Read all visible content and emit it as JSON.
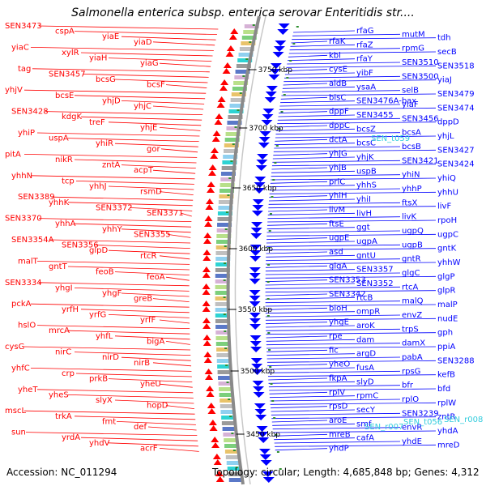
{
  "title": "Salmonella enterica subsp. enterica serovar Enteritidis str....",
  "accession": "Accession: NC_011294",
  "topology": "Topology: circular; Length: 4,685,848 bp; Genes: 4,312",
  "colors": {
    "left_genes": "#ff0000",
    "right_genes": "#0000ff",
    "rna_genes": "#33ccdd",
    "backbone": "#888888"
  },
  "kbp_markers": [
    "3750 kbp",
    "3700 kbp",
    "3650 kbp",
    "3600 kbp",
    "3550 kbp",
    "3500 kbp",
    "3450 kbp"
  ],
  "left_genes": [
    "SEN3473",
    "cspA",
    "yiaE",
    "yiaD",
    "yiaC",
    "xylR",
    "yiaH",
    "yiaG",
    "tag",
    "SEN3457",
    "bcsG",
    "bcsF",
    "yhjV",
    "bcsE",
    "yhjD",
    "yhjC",
    "SEN3428",
    "kdgK",
    "treF",
    "yhjE",
    "yhiP",
    "uspA",
    "yhiR",
    "gor",
    "pitA",
    "nikR",
    "zntA",
    "acpT",
    "yhhN",
    "tcp",
    "yhhJ",
    "rsmD",
    "SEN3389",
    "yhhK",
    "SEN3372",
    "SEN3371",
    "SEN3370",
    "yhhA",
    "yhhY",
    "SEN3355",
    "SEN3354A",
    "SEN3356",
    "glpD",
    "rtcR",
    "malT",
    "gntT",
    "feoB",
    "feoA",
    "SEN3334",
    "yhgI",
    "yhgF",
    "greB",
    "pckA",
    "yrfH",
    "yrfG",
    "yrfF",
    "hslO",
    "mrcA",
    "yhfL",
    "bigA",
    "cysG",
    "nirC",
    "nirD",
    "nirB",
    "yhfC",
    "crp",
    "prkB",
    "yheU",
    "yheT",
    "yheS",
    "slyX",
    "hopD",
    "mscL",
    "trkA",
    "fmt",
    "def",
    "sun",
    "yrdA",
    "yhdV",
    "acrF"
  ],
  "right_genes": [
    "rfaG",
    "mutM",
    "tdh",
    "rfaK",
    "rfaZ",
    "rpmG",
    "secB",
    "kbl",
    "rfaY",
    "SEN3510",
    "SEN3518",
    "cysE",
    "yibF",
    "SEN3500",
    "yiaJ",
    "aldB",
    "ysaA",
    "selB",
    "SEN3479",
    "bisC",
    "SEN3476A-bax",
    "yiaF",
    "SEN3474",
    "dppF",
    "SEN3455",
    "SEN3456",
    "dppD",
    "dppC",
    "bcsZ",
    "bcsA",
    "yhjL",
    "dctA",
    "bcsC",
    "bcsB",
    "SEN3427",
    "yhjG",
    "yhjK",
    "SEN3421",
    "SEN3424",
    "yhjB",
    "uspB",
    "yhiN",
    "yhiQ",
    "prlC",
    "yhhS",
    "yhhP",
    "yhhU",
    "yhiH",
    "yhiI",
    "ftsX",
    "livF",
    "livM",
    "livH",
    "livK",
    "rpoH",
    "ftsE",
    "ggt",
    "ugpQ",
    "ugpC",
    "ugpE",
    "ugpA",
    "ugpB",
    "gntK",
    "asd",
    "gntU",
    "gntR",
    "yhhW",
    "glgA",
    "SEN3357",
    "glgC",
    "glgP",
    "SEN3353",
    "SEN3352",
    "rtcA",
    "glpR",
    "SEN3342",
    "rtcB",
    "malQ",
    "malP",
    "bioH",
    "ompR",
    "envZ",
    "nudE",
    "yhgE",
    "aroK",
    "trpS",
    "gph",
    "rpe",
    "dam",
    "damX",
    "ppiA",
    "fic",
    "argD",
    "pabA",
    "SEN3288",
    "yheO",
    "fusA",
    "rpsG",
    "kefB",
    "fkpA",
    "slyD",
    "bfr",
    "bfd",
    "rplV",
    "rpmC",
    "rplO",
    "rplW",
    "rpsD",
    "secY",
    "SEN3239",
    "zntR",
    "aroE",
    "smf",
    "envR",
    "yhdA",
    "mreB",
    "cafA",
    "yhdE",
    "mreD",
    "yhdP"
  ],
  "rna_genes": [
    "SEN_t059",
    "SEN_r007",
    "SEN_t056",
    "SEN_r008"
  ]
}
